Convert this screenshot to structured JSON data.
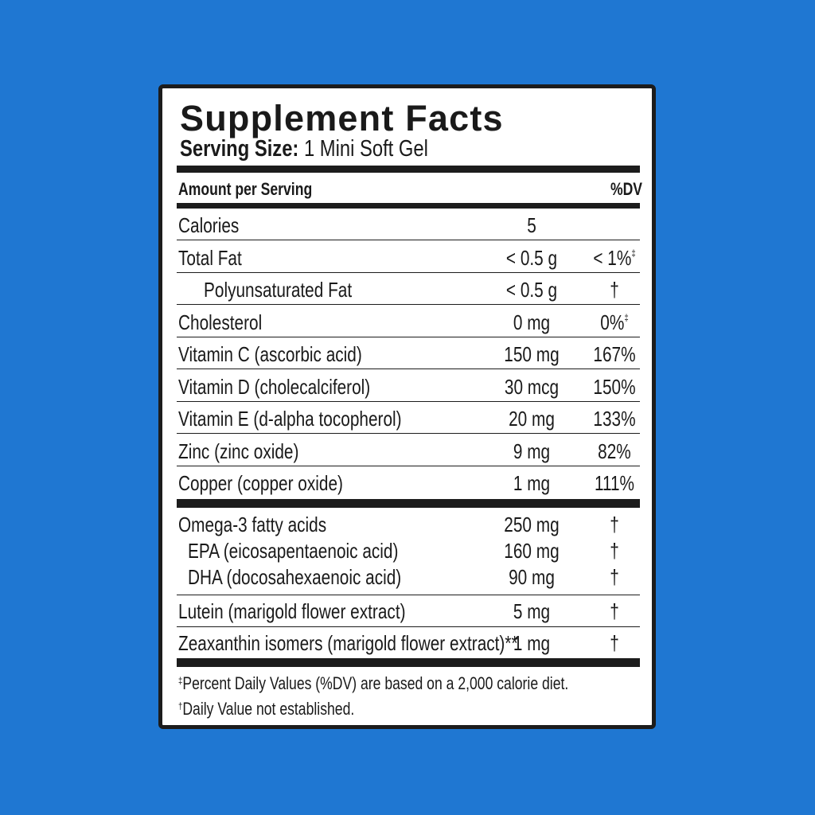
{
  "title": "Supplement Facts",
  "serving_label": "Serving Size:",
  "serving_value": "1 Mini Soft Gel",
  "header": {
    "amount": "Amount per Serving",
    "dv": "%DV"
  },
  "rows": [
    {
      "label": "Calories",
      "amount": "5",
      "dv": "",
      "mark": ""
    },
    {
      "label": "Total Fat",
      "amount": "< 0.5 g",
      "dv": "< 1%",
      "mark": "‡"
    },
    {
      "label": "Polyunsaturated Fat",
      "amount": "< 0.5 g",
      "dv": "†",
      "mark": "",
      "indent": true
    },
    {
      "label": "Cholesterol",
      "amount": "0 mg",
      "dv": "0%",
      "mark": "‡"
    },
    {
      "label": "Vitamin C (ascorbic acid)",
      "amount": "150 mg",
      "dv": "167%",
      "mark": ""
    },
    {
      "label": "Vitamin D (cholecalciferol)",
      "amount": "30 mcg",
      "dv": "150%",
      "mark": ""
    },
    {
      "label": "Vitamin E (d-alpha tocopherol)",
      "amount": "20 mg",
      "dv": "133%",
      "mark": ""
    },
    {
      "label": "Zinc (zinc oxide)",
      "amount": "9 mg",
      "dv": "82%",
      "mark": ""
    },
    {
      "label": "Copper (copper oxide)",
      "amount": "1 mg",
      "dv": "111%",
      "mark": ""
    }
  ],
  "omega_group": [
    {
      "label": "Omega-3 fatty acids",
      "amount": "250 mg",
      "dv": "†"
    },
    {
      "label": "EPA (eicosapentaenoic acid)",
      "amount": "160 mg",
      "dv": "†"
    },
    {
      "label": "DHA (docosahexaenoic acid)",
      "amount": "90 mg",
      "dv": "†"
    }
  ],
  "rows2": [
    {
      "label": "Lutein (marigold flower extract)",
      "amount": "5 mg",
      "dv": "†"
    },
    {
      "label": "Zeaxanthin isomers (marigold flower extract)**",
      "amount": "1 mg",
      "dv": "†"
    }
  ],
  "footnotes": [
    {
      "mark": "‡",
      "text": "Percent Daily Values (%DV) are based on a 2,000 calorie diet."
    },
    {
      "mark": "†",
      "text": "Daily Value not established."
    }
  ]
}
